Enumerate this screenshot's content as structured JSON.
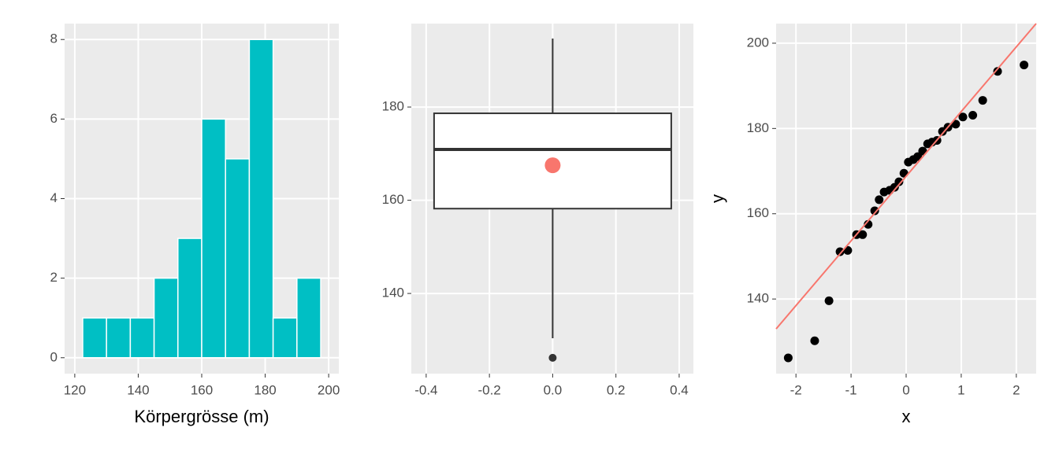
{
  "chart_data": [
    {
      "type": "histogram",
      "x_label": "Körpergrösse (m)",
      "bins": [
        122.5,
        130,
        137.5,
        145,
        152.5,
        160,
        167.5,
        175,
        182.5,
        190,
        197.5
      ],
      "values": [
        1,
        1,
        1,
        2,
        3,
        6,
        5,
        8,
        1,
        2
      ],
      "color": "#00bfc4",
      "xlim": [
        116.8,
        203.2
      ],
      "xticks": [
        120,
        140,
        160,
        180,
        200
      ],
      "ylim": [
        -0.4,
        8.4
      ],
      "yticks": [
        0,
        2,
        4,
        6,
        8
      ],
      "grid": true
    },
    {
      "type": "boxplot",
      "box": {
        "whisker_low": 130.4,
        "q1": 158.2,
        "median": 170.9,
        "q3": 178.65,
        "whisker_high": 194.7,
        "xmin": -0.375,
        "xmax": 0.375
      },
      "outliers": [
        126.2
      ],
      "mean": 167.5,
      "mean_color": "#f8766d",
      "xlim": [
        -0.447,
        0.445
      ],
      "xticks": [
        {
          "value": -0.4,
          "label": "-0.4"
        },
        {
          "value": -0.2,
          "label": "-0.2"
        },
        {
          "value": 0,
          "label": "0.0"
        },
        {
          "value": 0.2,
          "label": "0.2"
        },
        {
          "value": 0.4,
          "label": "0.4"
        }
      ],
      "ylim": [
        122.8,
        197.9
      ],
      "yticks": [
        140,
        160,
        180
      ],
      "grid": true
    },
    {
      "type": "scatter",
      "x_label": "x",
      "y_label": "y",
      "color": "#000000",
      "x": [
        -2.14,
        -1.66,
        -1.4,
        -1.2,
        -1.06,
        -0.9,
        -0.79,
        -0.69,
        -0.57,
        -0.49,
        -0.4,
        -0.3,
        -0.21,
        -0.13,
        -0.04,
        0.04,
        0.13,
        0.21,
        0.3,
        0.39,
        0.47,
        0.56,
        0.66,
        0.76,
        0.9,
        1.03,
        1.21,
        1.39,
        1.66,
        2.14
      ],
      "values": [
        126.2,
        130.2,
        139.6,
        151.1,
        151.4,
        155.1,
        155.1,
        157.5,
        160.7,
        163.3,
        165.1,
        165.5,
        166.2,
        167.5,
        169.5,
        172.1,
        172.7,
        173.4,
        174.7,
        176.4,
        176.8,
        177.2,
        179.3,
        180.3,
        181.0,
        182.7,
        183.1,
        186.6,
        193.4,
        194.9
      ],
      "line": {
        "intercept": 168.8,
        "slope": 15.17,
        "color": "#f8766d"
      },
      "xlim": [
        -2.36,
        2.36
      ],
      "xticks": [
        -2,
        -1,
        0,
        1,
        2
      ],
      "ylim": [
        122.5,
        204.6
      ],
      "yticks": [
        140,
        160,
        180,
        200
      ],
      "grid": true
    }
  ]
}
